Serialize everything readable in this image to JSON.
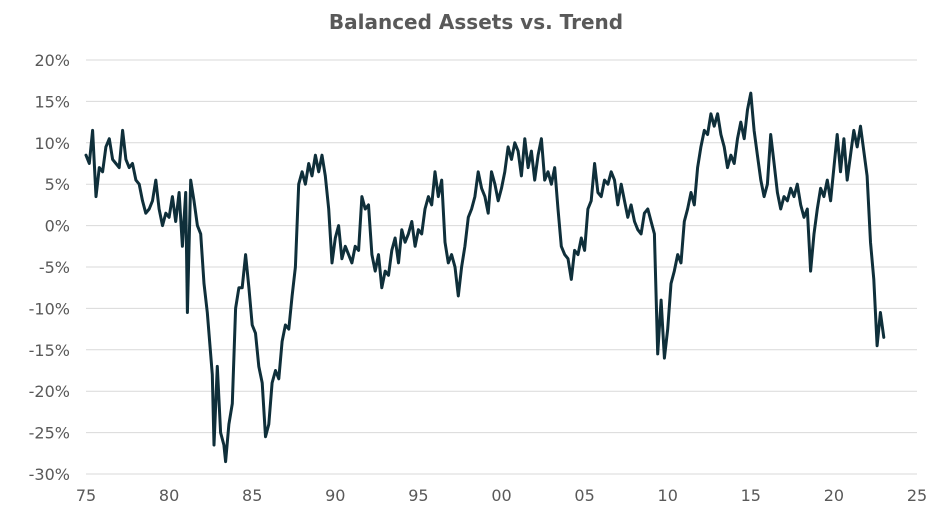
{
  "chart_data": {
    "type": "line",
    "title": "Balanced Assets vs. Trend",
    "xlabel": "",
    "ylabel": "",
    "grid": true,
    "legend": "none",
    "xlim": [
      1975,
      2025
    ],
    "ylim": [
      -30,
      20
    ],
    "x_ticks": [
      "75",
      "80",
      "85",
      "90",
      "95",
      "00",
      "05",
      "10",
      "15",
      "20",
      "25"
    ],
    "y_ticks": [
      "20%",
      "15%",
      "10%",
      "5%",
      "0%",
      "-5%",
      "-10%",
      "-15%",
      "-20%",
      "-25%",
      "-30%"
    ],
    "line_color": "#0f2f3a",
    "grid_color": "#d9d9d9",
    "series": [
      {
        "name": "",
        "points": [
          [
            1975.0,
            8.5
          ],
          [
            1975.2,
            7.5
          ],
          [
            1975.4,
            11.5
          ],
          [
            1975.6,
            3.5
          ],
          [
            1975.8,
            7.0
          ],
          [
            1976.0,
            6.5
          ],
          [
            1976.2,
            9.5
          ],
          [
            1976.4,
            10.5
          ],
          [
            1976.6,
            8.0
          ],
          [
            1976.8,
            7.5
          ],
          [
            1977.0,
            7.0
          ],
          [
            1977.2,
            11.5
          ],
          [
            1977.4,
            8.0
          ],
          [
            1977.6,
            7.0
          ],
          [
            1977.8,
            7.5
          ],
          [
            1978.0,
            5.5
          ],
          [
            1978.2,
            5.0
          ],
          [
            1978.4,
            3.0
          ],
          [
            1978.6,
            1.5
          ],
          [
            1978.8,
            2.0
          ],
          [
            1979.0,
            3.0
          ],
          [
            1979.2,
            5.5
          ],
          [
            1979.4,
            2.0
          ],
          [
            1979.6,
            0.0
          ],
          [
            1979.8,
            1.5
          ],
          [
            1980.0,
            1.0
          ],
          [
            1980.2,
            3.5
          ],
          [
            1980.4,
            0.5
          ],
          [
            1980.6,
            4.0
          ],
          [
            1980.8,
            -2.5
          ],
          [
            1981.0,
            4.0
          ],
          [
            1981.1,
            -10.5
          ],
          [
            1981.3,
            5.5
          ],
          [
            1981.5,
            3.0
          ],
          [
            1981.7,
            0.0
          ],
          [
            1981.9,
            -1.0
          ],
          [
            1982.1,
            -7.0
          ],
          [
            1982.3,
            -10.5
          ],
          [
            1982.6,
            -18.0
          ],
          [
            1982.7,
            -26.5
          ],
          [
            1982.9,
            -17.0
          ],
          [
            1983.1,
            -25.0
          ],
          [
            1983.3,
            -26.5
          ],
          [
            1983.4,
            -28.5
          ],
          [
            1983.6,
            -24.0
          ],
          [
            1983.8,
            -21.5
          ],
          [
            1984.0,
            -10.0
          ],
          [
            1984.2,
            -7.5
          ],
          [
            1984.4,
            -7.5
          ],
          [
            1984.6,
            -3.5
          ],
          [
            1984.8,
            -7.5
          ],
          [
            1985.0,
            -12.0
          ],
          [
            1985.2,
            -13.0
          ],
          [
            1985.4,
            -17.0
          ],
          [
            1985.6,
            -19.0
          ],
          [
            1985.8,
            -25.5
          ],
          [
            1986.0,
            -24.0
          ],
          [
            1986.2,
            -19.0
          ],
          [
            1986.4,
            -17.5
          ],
          [
            1986.6,
            -18.5
          ],
          [
            1986.8,
            -14.0
          ],
          [
            1987.0,
            -12.0
          ],
          [
            1987.2,
            -12.5
          ],
          [
            1987.4,
            -8.5
          ],
          [
            1987.6,
            -5.0
          ],
          [
            1987.8,
            5.0
          ],
          [
            1988.0,
            6.5
          ],
          [
            1988.2,
            5.0
          ],
          [
            1988.4,
            7.5
          ],
          [
            1988.6,
            6.0
          ],
          [
            1988.8,
            8.5
          ],
          [
            1989.0,
            6.5
          ],
          [
            1989.2,
            8.5
          ],
          [
            1989.4,
            6.0
          ],
          [
            1989.6,
            2.0
          ],
          [
            1989.8,
            -4.5
          ],
          [
            1990.0,
            -1.5
          ],
          [
            1990.2,
            0.0
          ],
          [
            1990.4,
            -4.0
          ],
          [
            1990.6,
            -2.5
          ],
          [
            1990.8,
            -3.5
          ],
          [
            1991.0,
            -4.5
          ],
          [
            1991.2,
            -2.5
          ],
          [
            1991.4,
            -3.0
          ],
          [
            1991.6,
            3.5
          ],
          [
            1991.8,
            2.0
          ],
          [
            1992.0,
            2.5
          ],
          [
            1992.2,
            -3.5
          ],
          [
            1992.4,
            -5.5
          ],
          [
            1992.6,
            -3.5
          ],
          [
            1992.8,
            -7.5
          ],
          [
            1993.0,
            -5.5
          ],
          [
            1993.2,
            -6.0
          ],
          [
            1993.4,
            -3.0
          ],
          [
            1993.6,
            -1.5
          ],
          [
            1993.8,
            -4.5
          ],
          [
            1994.0,
            -0.5
          ],
          [
            1994.2,
            -2.0
          ],
          [
            1994.4,
            -1.0
          ],
          [
            1994.6,
            0.5
          ],
          [
            1994.8,
            -2.5
          ],
          [
            1995.0,
            -0.5
          ],
          [
            1995.2,
            -1.0
          ],
          [
            1995.4,
            2.0
          ],
          [
            1995.6,
            3.5
          ],
          [
            1995.8,
            2.5
          ],
          [
            1996.0,
            6.5
          ],
          [
            1996.2,
            3.5
          ],
          [
            1996.4,
            5.5
          ],
          [
            1996.6,
            -2.0
          ],
          [
            1996.8,
            -4.5
          ],
          [
            1997.0,
            -3.5
          ],
          [
            1997.2,
            -5.0
          ],
          [
            1997.4,
            -8.5
          ],
          [
            1997.6,
            -5.0
          ],
          [
            1997.8,
            -2.5
          ],
          [
            1998.0,
            1.0
          ],
          [
            1998.2,
            2.0
          ],
          [
            1998.4,
            3.5
          ],
          [
            1998.6,
            6.5
          ],
          [
            1998.8,
            4.5
          ],
          [
            1999.0,
            3.5
          ],
          [
            1999.2,
            1.5
          ],
          [
            1999.4,
            6.5
          ],
          [
            1999.6,
            5.0
          ],
          [
            1999.8,
            3.0
          ],
          [
            2000.0,
            4.5
          ],
          [
            2000.2,
            6.5
          ],
          [
            2000.4,
            9.5
          ],
          [
            2000.6,
            8.0
          ],
          [
            2000.8,
            10.0
          ],
          [
            2001.0,
            9.0
          ],
          [
            2001.2,
            6.0
          ],
          [
            2001.4,
            10.5
          ],
          [
            2001.6,
            7.0
          ],
          [
            2001.8,
            9.0
          ],
          [
            2002.0,
            5.5
          ],
          [
            2002.2,
            8.5
          ],
          [
            2002.4,
            10.5
          ],
          [
            2002.6,
            5.5
          ],
          [
            2002.8,
            6.5
          ],
          [
            2003.0,
            5.0
          ],
          [
            2003.2,
            7.0
          ],
          [
            2003.4,
            2.0
          ],
          [
            2003.6,
            -2.5
          ],
          [
            2003.8,
            -3.5
          ],
          [
            2004.0,
            -4.0
          ],
          [
            2004.2,
            -6.5
          ],
          [
            2004.4,
            -3.0
          ],
          [
            2004.6,
            -3.5
          ],
          [
            2004.8,
            -1.5
          ],
          [
            2005.0,
            -3.0
          ],
          [
            2005.2,
            2.0
          ],
          [
            2005.4,
            3.0
          ],
          [
            2005.6,
            7.5
          ],
          [
            2005.8,
            4.0
          ],
          [
            2006.0,
            3.5
          ],
          [
            2006.2,
            5.5
          ],
          [
            2006.4,
            5.0
          ],
          [
            2006.6,
            6.5
          ],
          [
            2006.8,
            5.5
          ],
          [
            2007.0,
            2.5
          ],
          [
            2007.2,
            5.0
          ],
          [
            2007.4,
            3.0
          ],
          [
            2007.6,
            1.0
          ],
          [
            2007.8,
            2.5
          ],
          [
            2008.0,
            0.5
          ],
          [
            2008.2,
            -0.5
          ],
          [
            2008.4,
            -1.0
          ],
          [
            2008.6,
            1.5
          ],
          [
            2008.8,
            2.0
          ],
          [
            2009.0,
            0.5
          ],
          [
            2009.2,
            -1.0
          ],
          [
            2009.4,
            -15.5
          ],
          [
            2009.6,
            -9.0
          ],
          [
            2009.8,
            -16.0
          ],
          [
            2010.0,
            -12.5
          ],
          [
            2010.2,
            -7.0
          ],
          [
            2010.4,
            -5.5
          ],
          [
            2010.6,
            -3.5
          ],
          [
            2010.8,
            -4.5
          ],
          [
            2011.0,
            0.5
          ],
          [
            2011.2,
            2.0
          ],
          [
            2011.4,
            4.0
          ],
          [
            2011.6,
            2.5
          ],
          [
            2011.8,
            7.0
          ],
          [
            2012.0,
            9.5
          ],
          [
            2012.2,
            11.5
          ],
          [
            2012.4,
            11.0
          ],
          [
            2012.6,
            13.5
          ],
          [
            2012.8,
            12.0
          ],
          [
            2013.0,
            13.5
          ],
          [
            2013.2,
            11.0
          ],
          [
            2013.4,
            9.5
          ],
          [
            2013.6,
            7.0
          ],
          [
            2013.8,
            8.5
          ],
          [
            2014.0,
            7.5
          ],
          [
            2014.2,
            10.5
          ],
          [
            2014.4,
            12.5
          ],
          [
            2014.6,
            10.5
          ],
          [
            2014.8,
            14.0
          ],
          [
            2015.0,
            16.0
          ],
          [
            2015.2,
            11.5
          ],
          [
            2015.4,
            8.5
          ],
          [
            2015.6,
            5.5
          ],
          [
            2015.8,
            3.5
          ],
          [
            2016.0,
            5.0
          ],
          [
            2016.2,
            11.0
          ],
          [
            2016.4,
            7.5
          ],
          [
            2016.6,
            4.0
          ],
          [
            2016.8,
            2.0
          ],
          [
            2017.0,
            3.5
          ],
          [
            2017.2,
            3.0
          ],
          [
            2017.4,
            4.5
          ],
          [
            2017.6,
            3.5
          ],
          [
            2017.8,
            5.0
          ],
          [
            2018.0,
            2.5
          ],
          [
            2018.2,
            1.0
          ],
          [
            2018.4,
            2.0
          ],
          [
            2018.6,
            -5.5
          ],
          [
            2018.8,
            -1.0
          ],
          [
            2019.0,
            2.0
          ],
          [
            2019.2,
            4.5
          ],
          [
            2019.4,
            3.5
          ],
          [
            2019.6,
            5.5
          ],
          [
            2019.8,
            3.0
          ],
          [
            2020.0,
            7.0
          ],
          [
            2020.2,
            11.0
          ],
          [
            2020.4,
            6.5
          ],
          [
            2020.6,
            10.5
          ],
          [
            2020.8,
            5.5
          ],
          [
            2021.0,
            8.5
          ],
          [
            2021.2,
            11.5
          ],
          [
            2021.4,
            9.5
          ],
          [
            2021.6,
            12.0
          ],
          [
            2021.8,
            9.0
          ],
          [
            2022.0,
            6.0
          ],
          [
            2022.2,
            -2.0
          ],
          [
            2022.4,
            -6.5
          ],
          [
            2022.6,
            -14.5
          ],
          [
            2022.8,
            -10.5
          ],
          [
            2023.0,
            -13.5
          ]
        ]
      }
    ]
  }
}
